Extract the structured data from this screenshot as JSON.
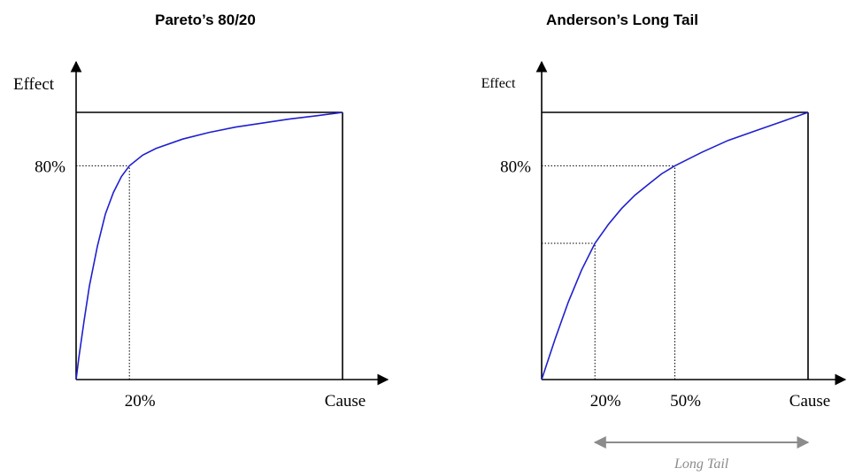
{
  "chart_data": [
    {
      "type": "line",
      "title": "Pareto’s 80/20",
      "xlabel": "Cause",
      "ylabel": "Effect",
      "xlim": [
        0,
        100
      ],
      "ylim": [
        0,
        100
      ],
      "x_markers": [
        {
          "value": 20,
          "label": "20%"
        }
      ],
      "y_markers": [
        {
          "value": 80,
          "label": "80%"
        }
      ],
      "series": [
        {
          "color": "#1f1fcf",
          "x": [
            0,
            1,
            3,
            5,
            8,
            11,
            14,
            17,
            20,
            25,
            30,
            40,
            50,
            60,
            70,
            80,
            90,
            100
          ],
          "y": [
            0,
            8,
            22,
            35,
            50,
            62,
            70,
            76,
            80,
            84,
            86.5,
            90,
            92.5,
            94.5,
            96,
            97.5,
            98.7,
            100
          ]
        }
      ],
      "colors": {
        "axis": "#000000",
        "guide": "#000000"
      }
    },
    {
      "type": "line",
      "title": "Anderson’s Long Tail",
      "xlabel": "Cause",
      "ylabel": "Effect",
      "xlim": [
        0,
        100
      ],
      "ylim": [
        0,
        100
      ],
      "x_markers": [
        {
          "value": 20,
          "label": "20%"
        },
        {
          "value": 50,
          "label": "50%"
        }
      ],
      "y_markers": [
        {
          "value": 80,
          "label": "80%"
        },
        {
          "value": 51,
          "label": ""
        }
      ],
      "series": [
        {
          "color": "#1f1fcf",
          "x": [
            0,
            5,
            10,
            15,
            20,
            25,
            30,
            35,
            40,
            45,
            50,
            60,
            70,
            80,
            90,
            100
          ],
          "y": [
            0,
            15,
            29,
            41,
            51,
            58,
            64,
            69,
            73,
            77,
            80,
            85,
            89.5,
            93,
            96.5,
            100
          ]
        }
      ],
      "annotations": [
        {
          "text": "Long Tail",
          "range": [
            20,
            100
          ],
          "color": "#8c8c8c"
        }
      ],
      "colors": {
        "axis": "#000000",
        "guide": "#000000"
      }
    }
  ]
}
